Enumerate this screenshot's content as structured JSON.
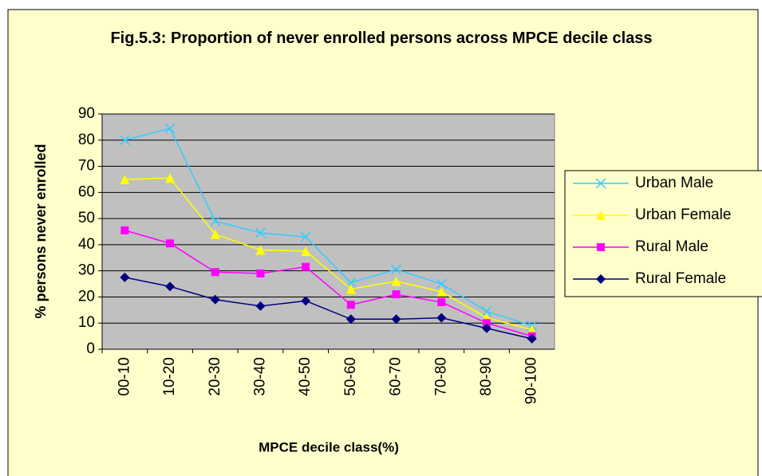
{
  "chart_data": {
    "type": "line",
    "title": "Fig.5.3: Proportion of never enrolled persons across MPCE decile class",
    "xlabel": "MPCE decile class(%)",
    "ylabel": "% persons never enrolled",
    "categories": [
      "00-10",
      "10-20",
      "20-30",
      "30-40",
      "40-50",
      "50-60",
      "60-70",
      "70-80",
      "80-90",
      "90-100"
    ],
    "series": [
      {
        "name": "Urban Male",
        "color": "#33CCFF",
        "marker": "x",
        "values": [
          80,
          84.5,
          49,
          44.5,
          43,
          25.5,
          30.5,
          25,
          14.5,
          9
        ]
      },
      {
        "name": "Urban Female",
        "color": "#FFFF00",
        "marker": "triangle",
        "values": [
          65,
          65.5,
          44,
          38,
          37.5,
          23,
          26,
          22,
          12,
          7.5
        ]
      },
      {
        "name": "Rural Male",
        "color": "#FF00FF",
        "marker": "square",
        "values": [
          45.5,
          40.5,
          29.5,
          29,
          31.5,
          17,
          21,
          18,
          10,
          5
        ]
      },
      {
        "name": "Rural Female",
        "color": "#000080",
        "marker": "diamond",
        "values": [
          27.5,
          24,
          19,
          16.5,
          18.5,
          11.5,
          11.5,
          12,
          8,
          4
        ]
      }
    ],
    "ylim": [
      0,
      90
    ],
    "yticks": [
      0,
      10,
      20,
      30,
      40,
      50,
      60,
      70,
      80,
      90
    ],
    "grid": true,
    "legend": "right"
  }
}
